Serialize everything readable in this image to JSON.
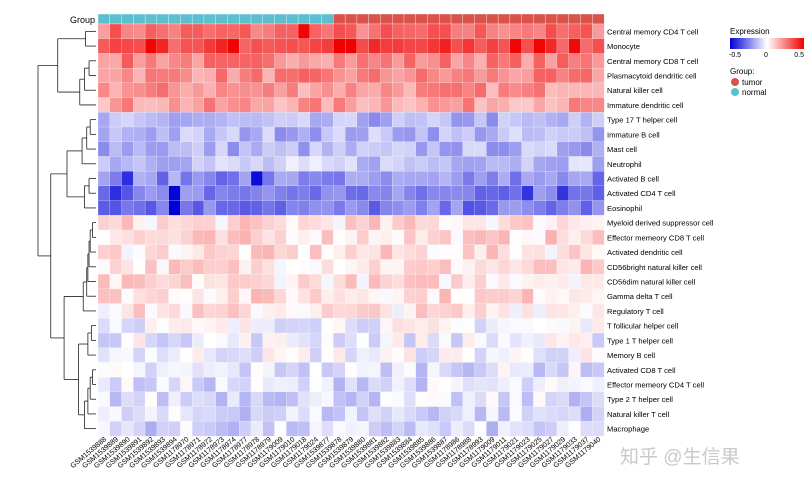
{
  "chart_data": {
    "type": "heatmap",
    "group_label": "Group",
    "group_names": [
      "tumor",
      "normal"
    ],
    "group_colors": {
      "tumor": "#d9534a",
      "normal": "#5bbfd0"
    },
    "columns": [
      "GSM1539888",
      "GSM1539889",
      "GSM1539890",
      "GSM1539891",
      "GSM1539892",
      "GSM1539893",
      "GSM1539894",
      "GSM1178970",
      "GSM1178971",
      "GSM1178972",
      "GSM1178973",
      "GSM1178974",
      "GSM1178977",
      "GSM1178978",
      "GSM1178979",
      "GSM1179009",
      "GSM1179010",
      "GSM1179018",
      "GSM1179024",
      "GSM1539877",
      "GSM1539878",
      "GSM1539879",
      "GSM1539880",
      "GSM1539881",
      "GSM1539882",
      "GSM1539883",
      "GSM1539884",
      "GSM1539885",
      "GSM1539886",
      "GSM1539887",
      "GSM1178986",
      "GSM1178988",
      "GSM1178993",
      "GSM1179009",
      "GSM1179011",
      "GSM1179021",
      "GSM1179023",
      "GSM1179025",
      "GSM1179027",
      "GSM1179029",
      "GSM1179033",
      "GSM1179037",
      "GSM1179040"
    ],
    "column_groups": [
      "normal",
      "normal",
      "normal",
      "normal",
      "normal",
      "normal",
      "normal",
      "normal",
      "normal",
      "normal",
      "normal",
      "normal",
      "normal",
      "normal",
      "normal",
      "normal",
      "normal",
      "normal",
      "normal",
      "normal",
      "tumor",
      "tumor",
      "tumor",
      "tumor",
      "tumor",
      "tumor",
      "tumor",
      "tumor",
      "tumor",
      "tumor",
      "tumor",
      "tumor",
      "tumor",
      "tumor",
      "tumor",
      "tumor",
      "tumor",
      "tumor",
      "tumor",
      "tumor",
      "tumor",
      "tumor",
      "tumor"
    ],
    "rows": [
      "Central memory CD4 T cell",
      "Monocyte",
      "Central memory CD8 T cell",
      "Plasmacytoid dendritic cell",
      "Natural killer cell",
      "Immature dendritic cell",
      "Type 17 T helper cell",
      "Immature B cell",
      "Mast cell",
      "Neutrophil",
      "Activated B cell",
      "Activated CD4 T cell",
      "Eosinophil",
      "Myeloid derived suppressor cell",
      "Effector memeory CD8 T cell",
      "Activated dendritic cell",
      "CD56bright natural killer cell",
      "CD56dim natural killer cell",
      "Gamma delta T cell",
      "Regulatory T cell",
      "T follicular helper cell",
      "Type 1 T helper cell",
      "Memory B cell",
      "Activated CD8 T cell",
      "Effector memeory CD4 T cell",
      "Type 2 T helper cell",
      "Natural killer T cell",
      "Macrophage"
    ],
    "row_base": [
      0.55,
      0.72,
      0.48,
      0.45,
      0.42,
      0.38,
      -0.32,
      -0.28,
      -0.3,
      -0.22,
      -0.45,
      -0.5,
      -0.52,
      0.12,
      0.14,
      0.12,
      0.13,
      0.12,
      0.14,
      0.1,
      -0.03,
      -0.06,
      -0.04,
      -0.12,
      -0.13,
      -0.14,
      -0.15,
      -0.17
    ],
    "hotspots": [
      {
        "row": "Central memory CD4 T cell",
        "column_index": 17,
        "value": 0.98
      },
      {
        "row": "Monocyte",
        "column_index": 4,
        "value": 0.98
      },
      {
        "row": "Monocyte",
        "column_index": 11,
        "value": 0.98
      },
      {
        "row": "Monocyte",
        "column_index": 20,
        "value": 1.0
      },
      {
        "row": "Monocyte",
        "column_index": 21,
        "value": 1.0
      },
      {
        "row": "Monocyte",
        "column_index": 35,
        "value": 0.98
      },
      {
        "row": "Monocyte",
        "column_index": 37,
        "value": 0.98
      },
      {
        "row": "Monocyte",
        "column_index": 40,
        "value": 0.96
      },
      {
        "row": "Activated B cell",
        "column_index": 13,
        "value": -0.95
      },
      {
        "row": "Activated CD4 T cell",
        "column_index": 6,
        "value": -0.98
      },
      {
        "row": "Eosinophil",
        "column_index": 6,
        "value": -1.0
      },
      {
        "row": "Activated B cell",
        "column_index": 2,
        "value": -0.82
      },
      {
        "row": "Activated CD4 T cell",
        "column_index": 1,
        "value": -0.82
      },
      {
        "row": "Activated CD4 T cell",
        "column_index": 36,
        "value": -0.8
      },
      {
        "row": "Activated CD4 T cell",
        "column_index": 39,
        "value": -0.8
      }
    ],
    "legend": {
      "title": "Expression",
      "ticks": [
        "-0.5",
        "0",
        "0.5"
      ],
      "group_title": "Group"
    },
    "colors": {
      "low": "#0000d8",
      "mid": "#ffffff",
      "high": "#f00000"
    },
    "dendrogram": "rows"
  },
  "watermark": "知乎 @生信果"
}
